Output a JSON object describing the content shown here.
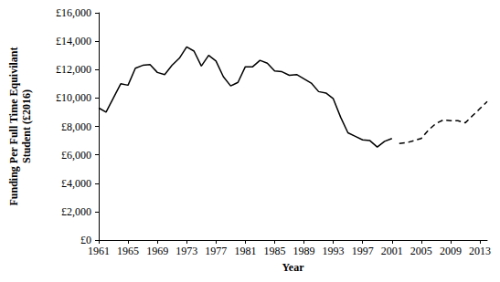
{
  "chart_data": {
    "type": "line",
    "x_label": "Year",
    "y_label": "Funding Per Full Time Equivilant Student (£2016)",
    "x": [
      1961,
      1962,
      1963,
      1964,
      1965,
      1966,
      1967,
      1968,
      1969,
      1970,
      1971,
      1972,
      1973,
      1974,
      1975,
      1976,
      1977,
      1978,
      1979,
      1980,
      1981,
      1982,
      1983,
      1984,
      1985,
      1986,
      1987,
      1988,
      1989,
      1990,
      1991,
      1992,
      1993,
      1994,
      1995,
      1996,
      1997,
      1998,
      1999,
      2000,
      2001,
      2002,
      2003,
      2004,
      2005,
      2006,
      2007,
      2008,
      2009,
      2010,
      2011,
      2012,
      2013,
      2014
    ],
    "series": [
      {
        "color": "#000000",
        "line_style": "solid",
        "values": [
          9300,
          9000,
          10000,
          11000,
          10900,
          12100,
          12300,
          12350,
          11800,
          11650,
          12300,
          12800,
          13600,
          13300,
          12250,
          13000,
          12600,
          11500,
          10850,
          11100,
          12200,
          12200,
          12650,
          12450,
          11900,
          11850,
          11600,
          11650,
          11350,
          11050,
          10450,
          10350,
          9950,
          8650,
          7550,
          7300,
          7050,
          7000,
          6550,
          6950,
          7150,
          null,
          null,
          null,
          null,
          null,
          null,
          null,
          null,
          null,
          null,
          null,
          null,
          null
        ]
      },
      {
        "color": "#000000",
        "line_style": "dashed",
        "values": [
          null,
          null,
          null,
          null,
          null,
          null,
          null,
          null,
          null,
          null,
          null,
          null,
          null,
          null,
          null,
          null,
          null,
          null,
          null,
          null,
          null,
          null,
          null,
          null,
          null,
          null,
          null,
          null,
          null,
          null,
          null,
          null,
          null,
          null,
          null,
          null,
          null,
          null,
          null,
          null,
          null,
          6800,
          6850,
          7000,
          7150,
          7750,
          8200,
          8450,
          8400,
          8400,
          8250,
          8750,
          9250,
          9750
        ]
      }
    ],
    "xlim": [
      1961,
      2014
    ],
    "xticks": [
      1961,
      1965,
      1969,
      1973,
      1977,
      1981,
      1985,
      1989,
      1993,
      1997,
      2001,
      2005,
      2009,
      2013
    ],
    "ylim": [
      0,
      16000
    ],
    "yticks": [
      {
        "value": 0,
        "label": "£0"
      },
      {
        "value": 2000,
        "label": "£2,000"
      },
      {
        "value": 4000,
        "label": "£4,000"
      },
      {
        "value": 6000,
        "label": "£6,000"
      },
      {
        "value": 8000,
        "label": "£8,000"
      },
      {
        "value": 10000,
        "label": "£10,000"
      },
      {
        "value": 12000,
        "label": "£12,000"
      },
      {
        "value": 14000,
        "label": "£14,000"
      },
      {
        "value": 16000,
        "label": "£16,000"
      }
    ],
    "grid": false
  }
}
